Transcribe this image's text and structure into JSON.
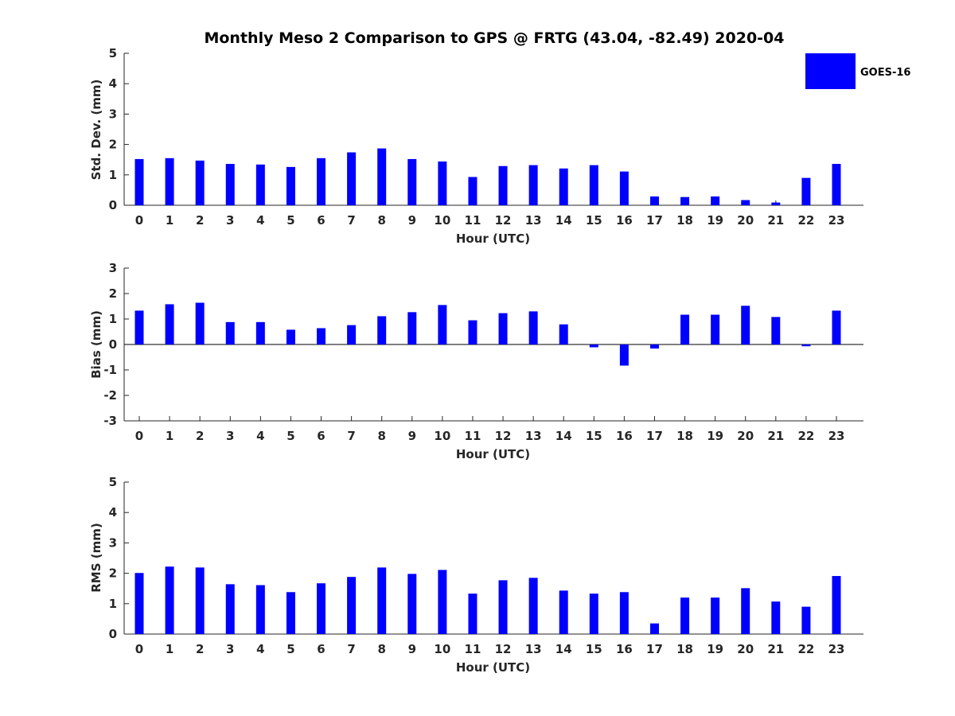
{
  "chart_data": [
    {
      "type": "bar",
      "title": "Monthly Meso 2 Comparison to GPS @ FRTG (43.04, -82.49) 2020-04",
      "xlabel": "Hour (UTC)",
      "ylabel": "Std. Dev. (mm)",
      "categories": [
        "0",
        "1",
        "2",
        "3",
        "4",
        "5",
        "6",
        "7",
        "8",
        "9",
        "10",
        "11",
        "12",
        "13",
        "14",
        "15",
        "16",
        "17",
        "18",
        "19",
        "20",
        "21",
        "22",
        "23"
      ],
      "yticks": [
        "0",
        "1",
        "2",
        "3",
        "4",
        "5"
      ],
      "ylim": [
        0,
        5
      ],
      "series": [
        {
          "name": "GOES-16",
          "values": [
            1.52,
            1.55,
            1.47,
            1.36,
            1.34,
            1.26,
            1.55,
            1.74,
            1.87,
            1.52,
            1.44,
            0.93,
            1.29,
            1.32,
            1.21,
            1.32,
            1.11,
            0.29,
            0.27,
            0.29,
            0.17,
            0.09,
            0.9,
            1.36
          ]
        }
      ],
      "legend": {
        "position": "top-right",
        "label": "GOES-16",
        "color": "#0000ff"
      }
    },
    {
      "type": "bar",
      "xlabel": "Hour (UTC)",
      "ylabel": "Bias (mm)",
      "categories": [
        "0",
        "1",
        "2",
        "3",
        "4",
        "5",
        "6",
        "7",
        "8",
        "9",
        "10",
        "11",
        "12",
        "13",
        "14",
        "15",
        "16",
        "17",
        "18",
        "19",
        "20",
        "21",
        "22",
        "23"
      ],
      "yticks": [
        "-3",
        "-2",
        "-1",
        "0",
        "1",
        "2",
        "3"
      ],
      "ylim": [
        -3,
        3
      ],
      "series": [
        {
          "values": [
            1.33,
            1.58,
            1.64,
            0.88,
            0.88,
            0.58,
            0.64,
            0.76,
            1.11,
            1.27,
            1.55,
            0.95,
            1.23,
            1.3,
            0.79,
            -0.11,
            -0.83,
            -0.16,
            1.17,
            1.17,
            1.52,
            1.08,
            -0.07,
            1.33
          ]
        }
      ]
    },
    {
      "type": "bar",
      "xlabel": "Hour (UTC)",
      "ylabel": "RMS (mm)",
      "categories": [
        "0",
        "1",
        "2",
        "3",
        "4",
        "5",
        "6",
        "7",
        "8",
        "9",
        "10",
        "11",
        "12",
        "13",
        "14",
        "15",
        "16",
        "17",
        "18",
        "19",
        "20",
        "21",
        "22",
        "23"
      ],
      "yticks": [
        "0",
        "1",
        "2",
        "3",
        "4",
        "5"
      ],
      "ylim": [
        0,
        5
      ],
      "series": [
        {
          "values": [
            2.01,
            2.22,
            2.19,
            1.64,
            1.61,
            1.38,
            1.67,
            1.88,
            2.19,
            1.98,
            2.11,
            1.33,
            1.77,
            1.85,
            1.43,
            1.33,
            1.38,
            0.35,
            1.2,
            1.2,
            1.51,
            1.07,
            0.9,
            1.91
          ]
        }
      ]
    }
  ],
  "colors": {
    "bar": "#0000ff",
    "axis": "#262626"
  }
}
